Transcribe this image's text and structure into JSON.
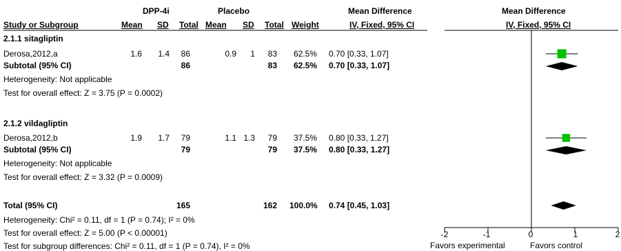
{
  "header": {
    "group1": "DPP-4i",
    "group2": "Placebo",
    "md_title_left": "Mean Difference",
    "md_title_right": "Mean Difference",
    "columns": [
      "Study or Subgroup",
      "Mean",
      "SD",
      "Total",
      "Mean",
      "SD",
      "Total",
      "Weight",
      "IV, Fixed, 95% CI"
    ],
    "right_subtitle": "IV, Fixed, 95% CI"
  },
  "subgroups": [
    {
      "title": "2.1.1 sitagliptin",
      "study": {
        "name": "Derosa,2012,a",
        "mean1": "1.6",
        "sd1": "1.4",
        "n1": "86",
        "mean2": "0.9",
        "sd2": "1",
        "n2": "83",
        "weight": "62.5%",
        "ci": "0.70 [0.33, 1.07]"
      },
      "subtotal": {
        "label": "Subtotal (95% CI)",
        "n1": "86",
        "n2": "83",
        "weight": "62.5%",
        "ci": "0.70 [0.33, 1.07]"
      },
      "heterogeneity": "Heterogeneity: Not applicable",
      "overall": "Test for overall effect: Z = 3.75 (P = 0.0002)"
    },
    {
      "title": "2.1.2 vildagliptin",
      "study": {
        "name": "Derosa,2012,b",
        "mean1": "1.9",
        "sd1": "1.7",
        "n1": "79",
        "mean2": "1.1",
        "sd2": "1.3",
        "n2": "79",
        "weight": "37.5%",
        "ci": "0.80 [0.33, 1.27]"
      },
      "subtotal": {
        "label": "Subtotal (95% CI)",
        "n1": "79",
        "n2": "79",
        "weight": "37.5%",
        "ci": "0.80 [0.33, 1.27]"
      },
      "heterogeneity": "Heterogeneity: Not applicable",
      "overall": "Test for overall effect: Z = 3.32 (P = 0.0009)"
    }
  ],
  "total": {
    "label": "Total (95% CI)",
    "n1": "165",
    "n2": "162",
    "weight": "100.0%",
    "ci": "0.74 [0.45, 1.03]",
    "heterogeneity": "Heterogeneity: Chi² = 0.11, df = 1 (P = 0.74); I² = 0%",
    "overall": "Test for overall effect: Z = 5.00 (P < 0.00001)",
    "subgroup_diff": "Test for subgroup differences: Chi² = 0.11, df = 1 (P = 0.74), I² = 0%"
  },
  "axis": {
    "ticks": [
      "-2",
      "-1",
      "0",
      "1",
      "2"
    ],
    "left_label": "Favors experimental",
    "right_label": "Favors control"
  },
  "colors": {
    "square": "#00c000",
    "diamond": "#000000"
  },
  "chart_data": {
    "type": "forest",
    "xlim": [
      -2,
      2
    ],
    "studies": [
      {
        "name": "Derosa,2012,a",
        "md": 0.7,
        "lo": 0.33,
        "hi": 1.07,
        "weight": 62.5
      },
      {
        "name": "Derosa,2012,b",
        "md": 0.8,
        "lo": 0.33,
        "hi": 1.27,
        "weight": 37.5
      }
    ],
    "subtotals": [
      {
        "label": "Subtotal (95% CI)",
        "md": 0.7,
        "lo": 0.33,
        "hi": 1.07
      },
      {
        "label": "Subtotal (95% CI)",
        "md": 0.8,
        "lo": 0.33,
        "hi": 1.27
      }
    ],
    "total": {
      "label": "Total (95% CI)",
      "md": 0.74,
      "lo": 0.45,
      "hi": 1.03
    }
  }
}
